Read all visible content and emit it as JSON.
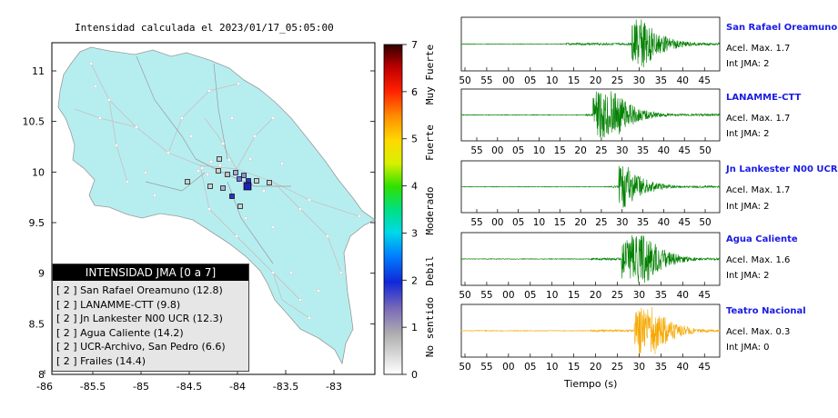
{
  "map": {
    "title": "Intensidad calculada el 2023/01/17_05:05:00",
    "x_ticks": [
      "-86",
      "-85.5",
      "-85",
      "-84.5",
      "-84",
      "-83.5",
      "-83"
    ],
    "y_ticks": [
      "11",
      "10.5",
      "10",
      "9.5",
      "9",
      "8.5",
      "8"
    ],
    "land_color": "#b6eef0"
  },
  "colorbar": {
    "ticks": [
      "0",
      "1",
      "2",
      "3",
      "4",
      "5",
      "6",
      "7"
    ],
    "labels": [
      "No sentido",
      "Debil",
      "Moderado",
      "Fuerte",
      "Muy Fuerte"
    ]
  },
  "legend": {
    "title": "INTENSIDAD JMA [0 a 7]",
    "rows": [
      "[ 2 ]  San Rafael Oreamuno (12.8)",
      "[ 2 ]  LANAMME-CTT (9.8)",
      "[ 2 ]  Jn Lankester N00 UCR (12.3)",
      "[ 2 ]  Agua Caliente (14.2)",
      "[ 2 ]  UCR-Archivo, San Pedro (6.6)",
      "[ 2 ]  Frailes (14.4)"
    ]
  },
  "stations": [
    {
      "name": "San Rafael Oreamuno",
      "accel": "Acel. Max. 1.7",
      "int": "Int JMA: 2",
      "color": "#008000",
      "ticks": [
        "50",
        "55",
        "00",
        "05",
        "10",
        "15",
        "20",
        "25",
        "30",
        "35",
        "40",
        "45"
      ]
    },
    {
      "name": "LANAMME-CTT",
      "accel": "Acel. Max. 1.7",
      "int": "Int JMA: 2",
      "color": "#008000",
      "ticks": [
        "55",
        "00",
        "05",
        "10",
        "15",
        "20",
        "25",
        "30",
        "35",
        "40",
        "45",
        "50"
      ]
    },
    {
      "name": "Jn Lankester N00 UCR",
      "accel": "Acel. Max. 1.7",
      "int": "Int JMA: 2",
      "color": "#008000",
      "ticks": [
        "55",
        "00",
        "05",
        "10",
        "15",
        "20",
        "25",
        "30",
        "35",
        "40",
        "45",
        "50"
      ]
    },
    {
      "name": "Agua Caliente",
      "accel": "Acel. Max. 1.6",
      "int": "Int JMA: 2",
      "color": "#008000",
      "ticks": [
        "50",
        "55",
        "00",
        "05",
        "10",
        "15",
        "20",
        "25",
        "30",
        "35",
        "40",
        "45"
      ]
    },
    {
      "name": "Teatro Nacional",
      "accel": "Acel. Max. 0.3",
      "int": "Int JMA: 0",
      "color": "#f5a800",
      "ticks": [
        "50",
        "55",
        "00",
        "05",
        "10",
        "15",
        "20",
        "25",
        "30",
        "35",
        "40",
        "45"
      ]
    }
  ],
  "xlabel": "Tiempo (s)"
}
